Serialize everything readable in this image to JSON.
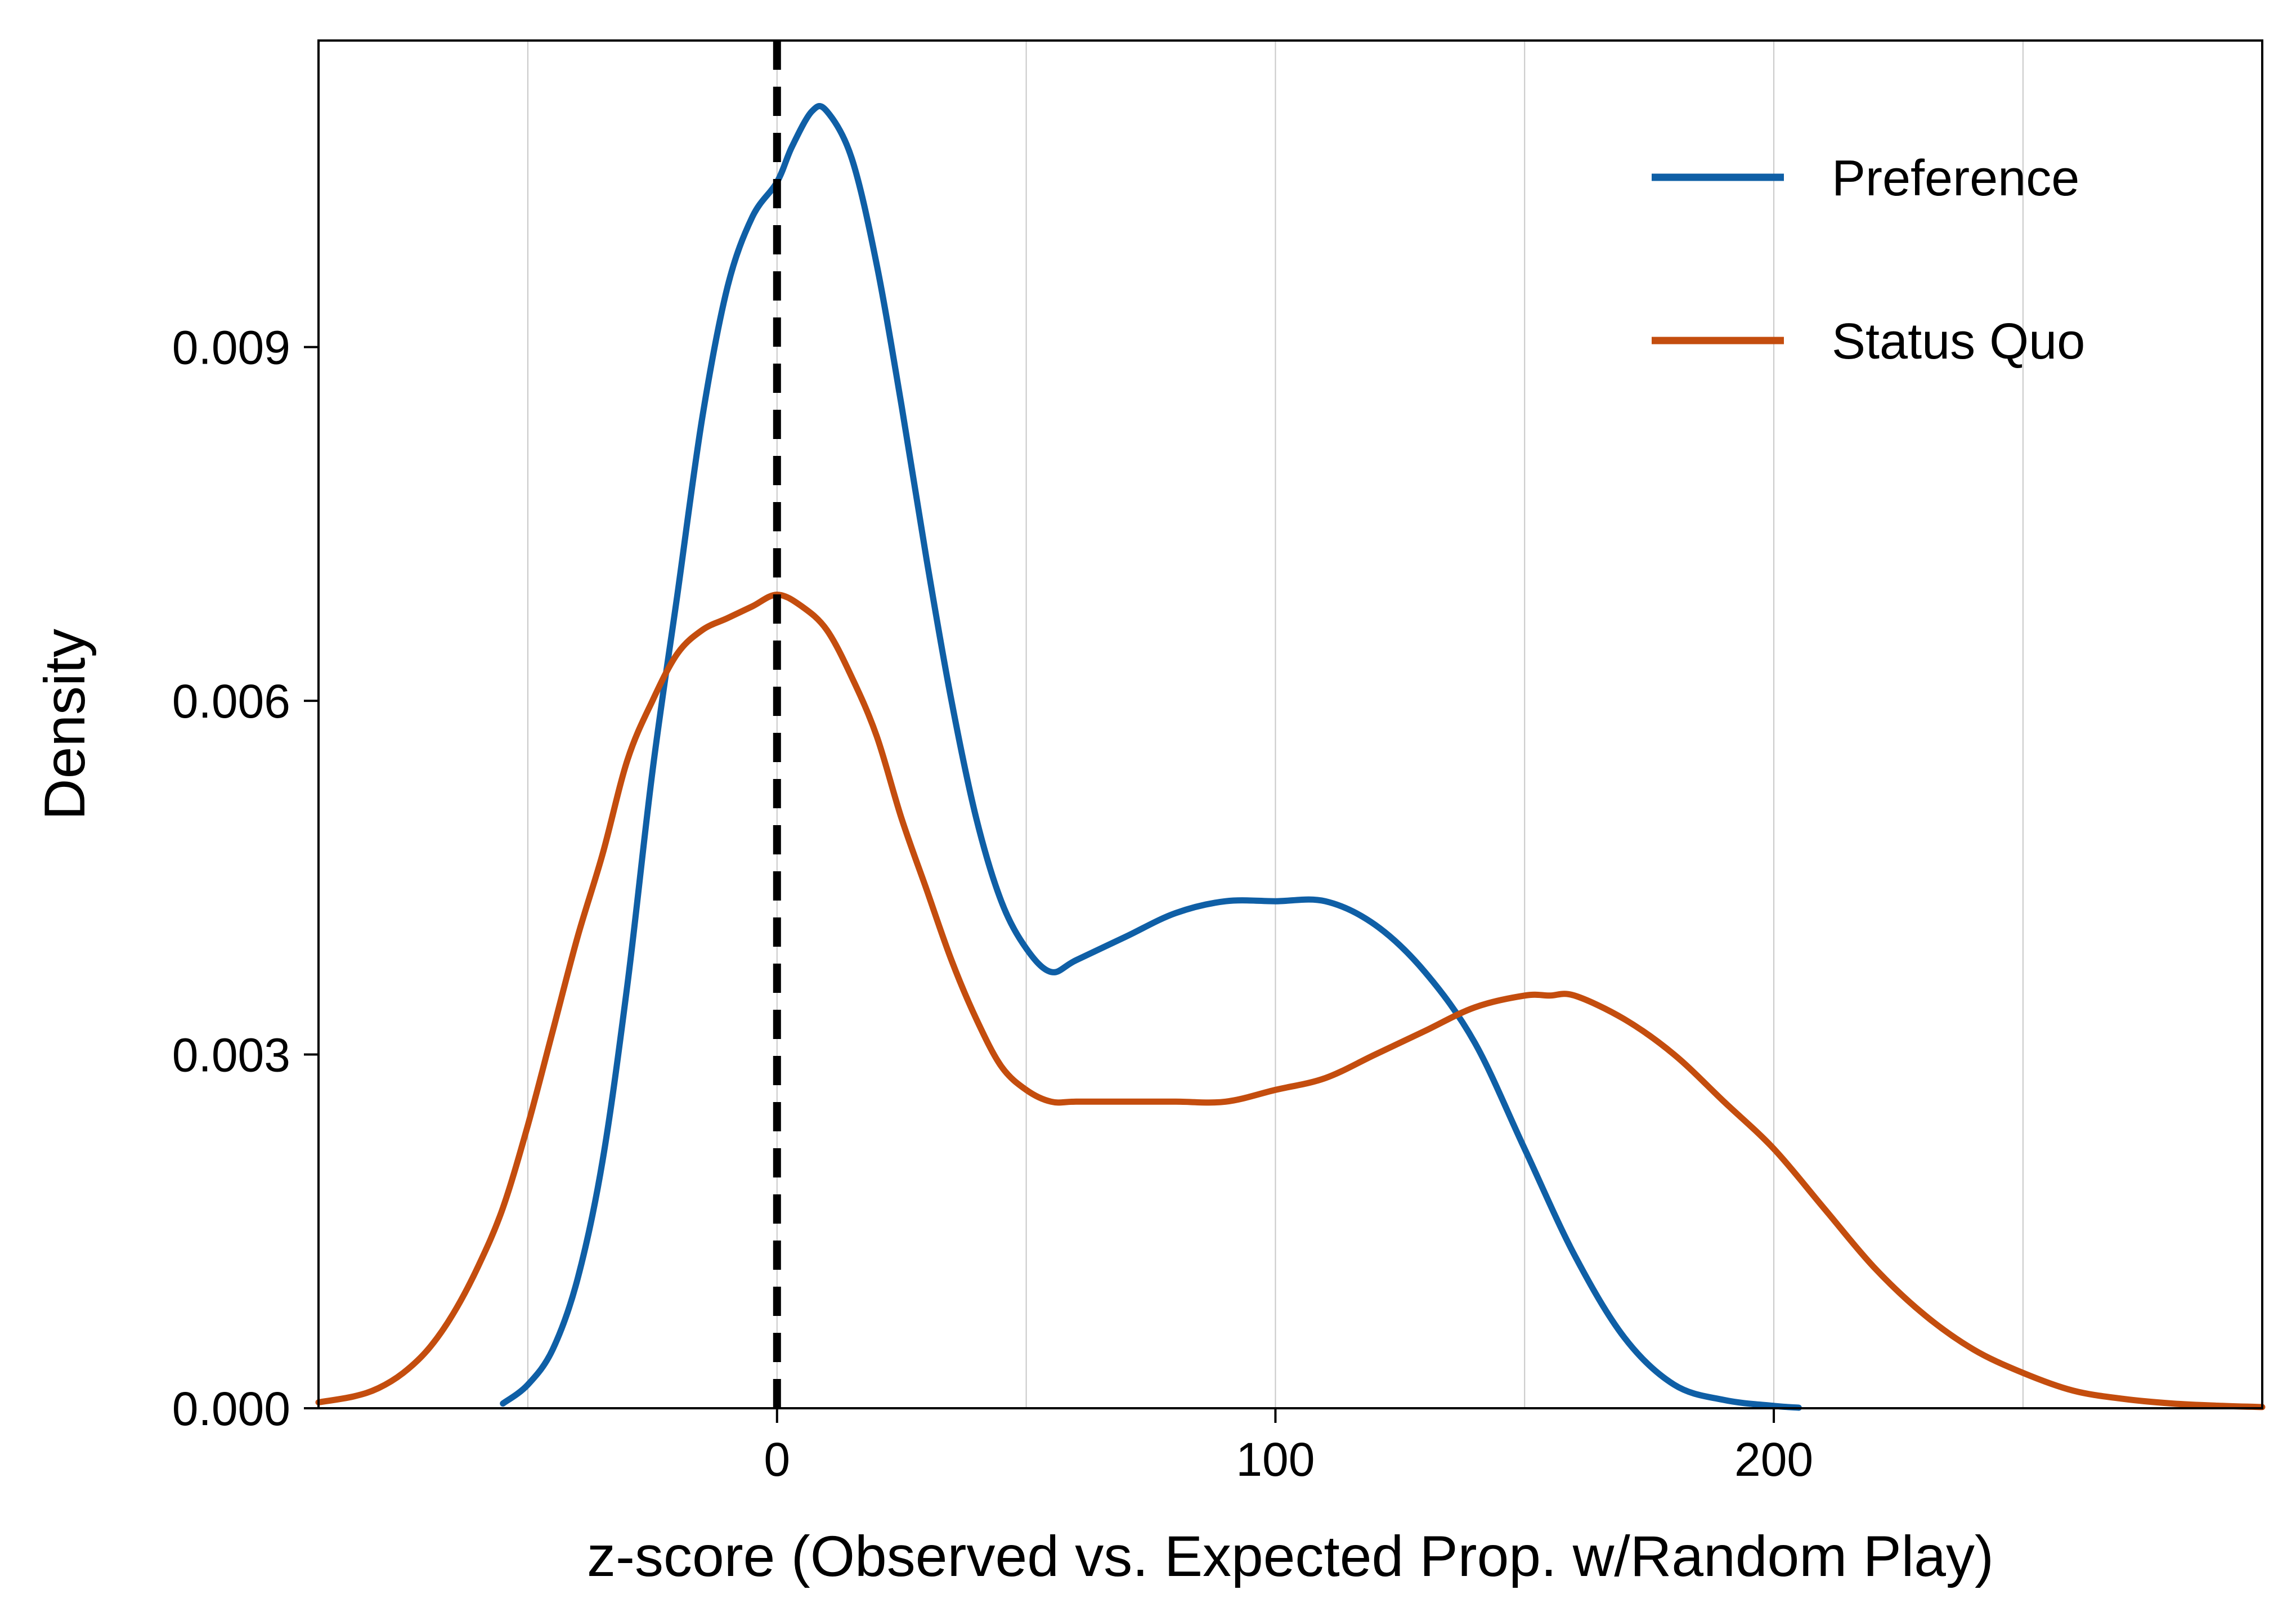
{
  "chart_data": {
    "type": "line",
    "xlabel": "z-score (Observed vs. Expected Prop. w/Random Play)",
    "ylabel": "Density",
    "xlim": [
      -92,
      298
    ],
    "ylim": [
      0,
      0.0116
    ],
    "x_ticks": [
      {
        "value": 0,
        "label": "0"
      },
      {
        "value": 100,
        "label": "100"
      },
      {
        "value": 200,
        "label": "200"
      }
    ],
    "y_ticks": [
      {
        "value": 0,
        "label": "0.000"
      },
      {
        "value": 0.003,
        "label": "0.003"
      },
      {
        "value": 0.006,
        "label": "0.006"
      },
      {
        "value": 0.009,
        "label": "0.009"
      }
    ],
    "x_gridlines": [
      -50,
      0,
      50,
      100,
      150,
      200,
      250
    ],
    "grid": "vertical",
    "reference_line": {
      "x": 0,
      "style": "dashed",
      "color": "#000000"
    },
    "legend_position": "top-right",
    "series": [
      {
        "name": "Preference",
        "color": "#0f5fa6",
        "points": [
          [
            -55,
            4e-05
          ],
          [
            -50,
            0.0002
          ],
          [
            -45,
            0.0005
          ],
          [
            -40,
            0.0011
          ],
          [
            -35,
            0.0021
          ],
          [
            -30,
            0.0036
          ],
          [
            -25,
            0.0054
          ],
          [
            -20,
            0.0069
          ],
          [
            -15,
            0.0084
          ],
          [
            -10,
            0.0095
          ],
          [
            -5,
            0.0101
          ],
          [
            0,
            0.0104
          ],
          [
            3,
            0.0107
          ],
          [
            7,
            0.011
          ],
          [
            10,
            0.011
          ],
          [
            15,
            0.0106
          ],
          [
            20,
            0.0097
          ],
          [
            25,
            0.0085
          ],
          [
            30,
            0.0072
          ],
          [
            35,
            0.006
          ],
          [
            40,
            0.005
          ],
          [
            45,
            0.0043
          ],
          [
            50,
            0.0039
          ],
          [
            55,
            0.0037
          ],
          [
            60,
            0.0038
          ],
          [
            70,
            0.004
          ],
          [
            80,
            0.0042
          ],
          [
            90,
            0.0043
          ],
          [
            100,
            0.0043
          ],
          [
            110,
            0.0043
          ],
          [
            120,
            0.0041
          ],
          [
            130,
            0.0037
          ],
          [
            140,
            0.0031
          ],
          [
            150,
            0.0022
          ],
          [
            160,
            0.0013
          ],
          [
            170,
            0.0006
          ],
          [
            180,
            0.0002
          ],
          [
            190,
            7e-05
          ],
          [
            200,
            2e-05
          ],
          [
            205,
            5e-06
          ]
        ]
      },
      {
        "name": "Status Quo",
        "color": "#c44d0e",
        "points": [
          [
            -92,
            5e-05
          ],
          [
            -85,
            0.0001
          ],
          [
            -80,
            0.00017
          ],
          [
            -75,
            0.0003
          ],
          [
            -70,
            0.0005
          ],
          [
            -65,
            0.0008
          ],
          [
            -60,
            0.0012
          ],
          [
            -55,
            0.0017
          ],
          [
            -50,
            0.0024
          ],
          [
            -45,
            0.0032
          ],
          [
            -40,
            0.004
          ],
          [
            -35,
            0.0047
          ],
          [
            -30,
            0.0055
          ],
          [
            -25,
            0.006
          ],
          [
            -20,
            0.0064
          ],
          [
            -15,
            0.0066
          ],
          [
            -10,
            0.0067
          ],
          [
            -5,
            0.0068
          ],
          [
            0,
            0.0069
          ],
          [
            5,
            0.0068
          ],
          [
            10,
            0.0066
          ],
          [
            15,
            0.0062
          ],
          [
            20,
            0.0057
          ],
          [
            25,
            0.005
          ],
          [
            30,
            0.0044
          ],
          [
            35,
            0.0038
          ],
          [
            40,
            0.0033
          ],
          [
            45,
            0.0029
          ],
          [
            50,
            0.0027
          ],
          [
            55,
            0.0026
          ],
          [
            60,
            0.0026
          ],
          [
            70,
            0.0026
          ],
          [
            80,
            0.0026
          ],
          [
            90,
            0.0026
          ],
          [
            100,
            0.0027
          ],
          [
            110,
            0.0028
          ],
          [
            120,
            0.003
          ],
          [
            130,
            0.0032
          ],
          [
            140,
            0.0034
          ],
          [
            150,
            0.0035
          ],
          [
            155,
            0.0035
          ],
          [
            160,
            0.0035
          ],
          [
            170,
            0.0033
          ],
          [
            180,
            0.003
          ],
          [
            190,
            0.0026
          ],
          [
            200,
            0.0022
          ],
          [
            210,
            0.0017
          ],
          [
            220,
            0.0012
          ],
          [
            230,
            0.0008
          ],
          [
            240,
            0.0005
          ],
          [
            250,
            0.0003
          ],
          [
            260,
            0.00015
          ],
          [
            270,
            8e-05
          ],
          [
            280,
            4e-05
          ],
          [
            290,
            2e-05
          ],
          [
            298,
            1e-05
          ]
        ]
      }
    ]
  }
}
